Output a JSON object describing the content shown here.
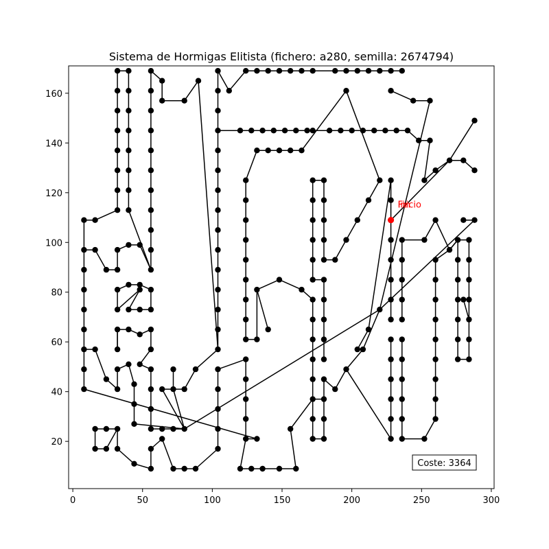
{
  "chart_data": {
    "type": "line",
    "title": "Sistema de Hormigas Elitista (fichero: a280, semilla: 2674794)",
    "xlabel": "",
    "ylabel": "",
    "xlim": [
      -3,
      302
    ],
    "ylim": [
      1,
      171
    ],
    "x_ticks": [
      0,
      50,
      100,
      150,
      200,
      250,
      300
    ],
    "y_ticks": [
      20,
      40,
      60,
      80,
      100,
      120,
      140,
      160
    ],
    "grid": false,
    "tour": [
      [
        228,
        109
      ],
      [
        228,
        101
      ],
      [
        228,
        93
      ],
      [
        228,
        85
      ],
      [
        228,
        77
      ],
      [
        228,
        69
      ],
      [
        236,
        69
      ],
      [
        236,
        77
      ],
      [
        236,
        85
      ],
      [
        236,
        93
      ],
      [
        236,
        101
      ],
      [
        252,
        101
      ],
      [
        260,
        109
      ],
      [
        270,
        97
      ],
      [
        276,
        101
      ],
      [
        284,
        101
      ],
      [
        284,
        93
      ],
      [
        284,
        85
      ],
      [
        284,
        77
      ],
      [
        284,
        69
      ],
      [
        280,
        77
      ],
      [
        276,
        77
      ],
      [
        276,
        85
      ],
      [
        276,
        93
      ],
      [
        276,
        101
      ],
      [
        280,
        109
      ],
      [
        288,
        109
      ],
      [
        228,
        61
      ],
      [
        236,
        61
      ],
      [
        236,
        53
      ],
      [
        236,
        45
      ],
      [
        236,
        37
      ],
      [
        236,
        29
      ],
      [
        236,
        21
      ],
      [
        252,
        21
      ],
      [
        260,
        29
      ],
      [
        260,
        37
      ],
      [
        260,
        45
      ],
      [
        260,
        53
      ],
      [
        260,
        61
      ],
      [
        260,
        69
      ],
      [
        260,
        77
      ],
      [
        260,
        85
      ],
      [
        260,
        93
      ],
      [
        270,
        97
      ],
      [
        276,
        77
      ],
      [
        276,
        69
      ],
      [
        276,
        61
      ],
      [
        276,
        53
      ],
      [
        284,
        53
      ],
      [
        284,
        61
      ],
      [
        284,
        69
      ],
      [
        204,
        57
      ],
      [
        212,
        65
      ],
      [
        228,
        125
      ],
      [
        228,
        117
      ],
      [
        228,
        109
      ]
    ],
    "paths": [
      [
        [
          228,
          109
        ],
        [
          228,
          101
        ],
        [
          228,
          93
        ],
        [
          228,
          85
        ],
        [
          228,
          77
        ],
        [
          228,
          69
        ]
      ],
      [
        [
          236,
          69
        ],
        [
          236,
          77
        ],
        [
          236,
          85
        ],
        [
          236,
          93
        ],
        [
          236,
          101
        ],
        [
          252,
          101
        ],
        [
          260,
          109
        ],
        [
          270,
          97
        ],
        [
          276,
          101
        ],
        [
          284,
          101
        ],
        [
          284,
          93
        ],
        [
          284,
          85
        ],
        [
          284,
          77
        ],
        [
          284,
          69
        ],
        [
          280,
          77
        ]
      ],
      [
        [
          276,
          77
        ],
        [
          276,
          85
        ],
        [
          276,
          93
        ],
        [
          276,
          101
        ]
      ],
      [
        [
          280,
          109
        ],
        [
          288,
          109
        ],
        [
          220,
          73
        ],
        [
          80,
          25
        ],
        [
          64,
          25
        ],
        [
          56,
          25
        ],
        [
          56,
          33
        ],
        [
          56,
          41
        ],
        [
          56,
          49
        ],
        [
          48,
          51
        ],
        [
          56,
          57
        ],
        [
          56,
          65
        ],
        [
          48,
          63
        ],
        [
          40,
          65
        ],
        [
          32,
          65
        ],
        [
          32,
          57
        ]
      ],
      [
        [
          228,
          61
        ],
        [
          228,
          53
        ],
        [
          228,
          45
        ],
        [
          228,
          37
        ],
        [
          228,
          29
        ],
        [
          228,
          21
        ],
        [
          196,
          49
        ],
        [
          188,
          41
        ],
        [
          180,
          45
        ],
        [
          180,
          37
        ],
        [
          180,
          29
        ],
        [
          180,
          21
        ],
        [
          172,
          21
        ],
        [
          172,
          29
        ],
        [
          172,
          37
        ],
        [
          172,
          45
        ],
        [
          172,
          53
        ],
        [
          172,
          61
        ],
        [
          172,
          69
        ],
        [
          172,
          77
        ],
        [
          164,
          81
        ],
        [
          148,
          85
        ],
        [
          132,
          81
        ],
        [
          140,
          65
        ]
      ],
      [
        [
          236,
          61
        ],
        [
          236,
          53
        ],
        [
          236,
          45
        ],
        [
          236,
          37
        ],
        [
          236,
          29
        ],
        [
          236,
          21
        ],
        [
          252,
          21
        ],
        [
          260,
          29
        ],
        [
          260,
          37
        ],
        [
          260,
          45
        ],
        [
          260,
          53
        ],
        [
          260,
          61
        ],
        [
          260,
          69
        ],
        [
          260,
          77
        ],
        [
          260,
          85
        ],
        [
          260,
          93
        ],
        [
          270,
          97
        ],
        [
          276,
          101
        ]
      ],
      [
        [
          276,
          77
        ],
        [
          276,
          69
        ],
        [
          276,
          61
        ],
        [
          276,
          53
        ],
        [
          284,
          53
        ],
        [
          284,
          61
        ],
        [
          284,
          69
        ]
      ],
      [
        [
          204,
          57
        ],
        [
          212,
          65
        ],
        [
          228,
          125
        ],
        [
          228,
          117
        ],
        [
          228,
          109
        ]
      ],
      [
        [
          180,
          61
        ],
        [
          180,
          69
        ],
        [
          180,
          77
        ],
        [
          180,
          85
        ],
        [
          172,
          85
        ],
        [
          172,
          93
        ],
        [
          172,
          101
        ],
        [
          172,
          109
        ],
        [
          172,
          117
        ],
        [
          172,
          125
        ],
        [
          180,
          125
        ],
        [
          180,
          117
        ],
        [
          180,
          109
        ],
        [
          180,
          101
        ],
        [
          180,
          93
        ],
        [
          188,
          93
        ],
        [
          196,
          101
        ],
        [
          204,
          109
        ],
        [
          212,
          117
        ],
        [
          220,
          125
        ],
        [
          196,
          161
        ],
        [
          164,
          137
        ],
        [
          156,
          137
        ],
        [
          148,
          137
        ],
        [
          140,
          137
        ],
        [
          132,
          137
        ],
        [
          124,
          125
        ],
        [
          124,
          117
        ],
        [
          124,
          109
        ],
        [
          124,
          101
        ],
        [
          124,
          93
        ],
        [
          124,
          85
        ],
        [
          124,
          77
        ],
        [
          124,
          69
        ],
        [
          124,
          61
        ],
        [
          132,
          61
        ],
        [
          132,
          81
        ]
      ],
      [
        [
          180,
          53
        ],
        [
          180,
          61
        ]
      ],
      [
        [
          8,
          41
        ],
        [
          8,
          49
        ],
        [
          8,
          57
        ],
        [
          8,
          65
        ],
        [
          8,
          73
        ],
        [
          8,
          81
        ],
        [
          8,
          89
        ],
        [
          8,
          97
        ],
        [
          8,
          109
        ],
        [
          16,
          109
        ],
        [
          32,
          113
        ],
        [
          32,
          121
        ],
        [
          32,
          129
        ],
        [
          32,
          137
        ],
        [
          32,
          145
        ],
        [
          32,
          153
        ],
        [
          32,
          161
        ],
        [
          32,
          169
        ],
        [
          40,
          169
        ],
        [
          40,
          161
        ],
        [
          40,
          153
        ],
        [
          40,
          145
        ],
        [
          40,
          137
        ],
        [
          40,
          129
        ],
        [
          40,
          121
        ],
        [
          40,
          113
        ],
        [
          56,
          89
        ],
        [
          56,
          97
        ],
        [
          56,
          105
        ],
        [
          56,
          113
        ],
        [
          56,
          121
        ],
        [
          56,
          129
        ],
        [
          56,
          137
        ],
        [
          56,
          145
        ],
        [
          56,
          153
        ],
        [
          56,
          161
        ],
        [
          56,
          169
        ],
        [
          64,
          165
        ],
        [
          64,
          157
        ],
        [
          80,
          157
        ],
        [
          90,
          165
        ],
        [
          104,
          57
        ],
        [
          104,
          65
        ],
        [
          104,
          73
        ],
        [
          104,
          81
        ],
        [
          104,
          89
        ],
        [
          104,
          97
        ],
        [
          104,
          105
        ],
        [
          104,
          113
        ],
        [
          104,
          121
        ],
        [
          104,
          129
        ],
        [
          104,
          137
        ],
        [
          104,
          145
        ],
        [
          120,
          145
        ],
        [
          128,
          145
        ],
        [
          136,
          145
        ],
        [
          144,
          145
        ],
        [
          152,
          145
        ],
        [
          160,
          145
        ],
        [
          168,
          145
        ],
        [
          184,
          145
        ],
        [
          192,
          145
        ],
        [
          200,
          145
        ],
        [
          208,
          145
        ],
        [
          216,
          145
        ],
        [
          224,
          145
        ],
        [
          232,
          145
        ],
        [
          240,
          145
        ],
        [
          248,
          141
        ],
        [
          256,
          141
        ],
        [
          252,
          125
        ],
        [
          260,
          129
        ],
        [
          270,
          133
        ],
        [
          280,
          133
        ],
        [
          288,
          129
        ]
      ],
      [
        [
          8,
          41
        ],
        [
          132,
          21
        ],
        [
          124,
          21
        ],
        [
          124,
          29
        ],
        [
          124,
          37
        ],
        [
          124,
          45
        ],
        [
          124,
          53
        ],
        [
          104,
          49
        ],
        [
          104,
          41
        ],
        [
          104,
          33
        ],
        [
          104,
          25
        ],
        [
          104,
          17
        ],
        [
          88,
          9
        ],
        [
          80,
          9
        ],
        [
          72,
          9
        ],
        [
          64,
          21
        ],
        [
          56,
          17
        ],
        [
          56,
          9
        ],
        [
          44,
          11
        ],
        [
          32,
          17
        ],
        [
          32,
          25
        ],
        [
          24,
          25
        ],
        [
          16,
          25
        ],
        [
          16,
          17
        ],
        [
          24,
          17
        ],
        [
          32,
          25
        ]
      ],
      [
        [
          8,
          57
        ],
        [
          16,
          57
        ],
        [
          24,
          45
        ],
        [
          32,
          41
        ],
        [
          32,
          49
        ],
        [
          40,
          51
        ],
        [
          44,
          43
        ],
        [
          44,
          35
        ],
        [
          44,
          27
        ],
        [
          80,
          25
        ],
        [
          64,
          41
        ],
        [
          72,
          41
        ],
        [
          80,
          41
        ],
        [
          88,
          49
        ],
        [
          104,
          57
        ]
      ],
      [
        [
          32,
          57
        ],
        [
          32,
          65
        ]
      ],
      [
        [
          8,
          97
        ],
        [
          16,
          97
        ],
        [
          24,
          89
        ],
        [
          32,
          89
        ],
        [
          32,
          97
        ],
        [
          40,
          99
        ],
        [
          48,
          99
        ],
        [
          56,
          89
        ]
      ],
      [
        [
          32,
          81
        ],
        [
          40,
          83
        ],
        [
          48,
          83
        ],
        [
          56,
          81
        ],
        [
          56,
          73
        ],
        [
          48,
          73
        ],
        [
          40,
          73
        ],
        [
          48,
          81
        ],
        [
          32,
          73
        ],
        [
          32,
          81
        ]
      ],
      [
        [
          72,
          49
        ],
        [
          72,
          41
        ],
        [
          80,
          25
        ],
        [
          72,
          25
        ]
      ],
      [
        [
          104,
          169
        ],
        [
          112,
          161
        ],
        [
          124,
          169
        ],
        [
          132,
          169
        ],
        [
          140,
          169
        ],
        [
          148,
          169
        ],
        [
          156,
          169
        ],
        [
          164,
          169
        ],
        [
          172,
          169
        ],
        [
          188,
          169
        ],
        [
          196,
          169
        ],
        [
          204,
          169
        ],
        [
          212,
          169
        ],
        [
          220,
          169
        ],
        [
          228,
          169
        ],
        [
          236,
          169
        ]
      ],
      [
        [
          228,
          161
        ],
        [
          244,
          157
        ],
        [
          256,
          157
        ],
        [
          220,
          73
        ],
        [
          208,
          57
        ],
        [
          196,
          49
        ]
      ],
      [
        [
          104,
          169
        ],
        [
          104,
          161
        ],
        [
          104,
          153
        ],
        [
          104,
          145
        ]
      ],
      [
        [
          120,
          9
        ],
        [
          128,
          9
        ],
        [
          136,
          9
        ],
        [
          148,
          9
        ],
        [
          160,
          9
        ],
        [
          156,
          25
        ],
        [
          172,
          37
        ],
        [
          180,
          37
        ]
      ],
      [
        [
          124,
          21
        ],
        [
          120,
          9
        ]
      ],
      [
        [
          288,
          149
        ],
        [
          270,
          133
        ],
        [
          228,
          109
        ]
      ],
      [
        [
          172,
          145
        ],
        [
          184,
          145
        ]
      ]
    ],
    "special_points": [
      {
        "label": "Fin",
        "x": 228,
        "y": 109,
        "color": "#ff0000"
      },
      {
        "label": "Inicio",
        "x": 228,
        "y": 109,
        "color": "#ff0000"
      }
    ],
    "annotation": "Coste: 3364"
  }
}
